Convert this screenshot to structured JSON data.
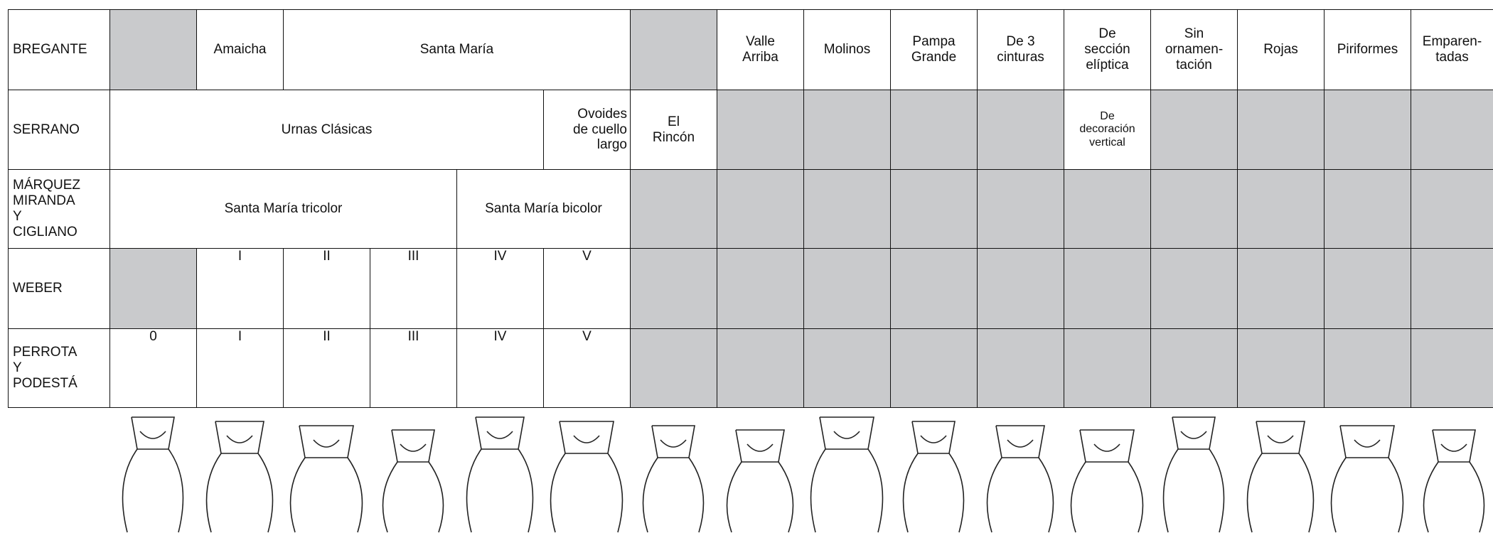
{
  "table": {
    "rows": [
      {
        "label": "BREGANTE",
        "cells": [
          "Amaicha",
          "Santa María",
          "Valle\nArriba",
          "Molinos",
          "Pampa\nGrande",
          "De 3\ncinturas",
          "De\nsección\nelíptica",
          "Sin\nornamen-\ntación",
          "Rojas",
          "Piriformes",
          "Emparen-\ntadas"
        ]
      },
      {
        "label": "SERRANO",
        "cells": [
          "Urnas Clásicas",
          "Ovoides\nde cuello\nlargo",
          "El\nRincón",
          "De\ndecoración\nvertical"
        ]
      },
      {
        "label": "MÁRQUEZ\nMIRANDA\nY\nCIGLIANO",
        "cells": [
          "Santa María tricolor",
          "Santa María bicolor"
        ]
      },
      {
        "label": "WEBER",
        "cells": [
          "I",
          "II",
          "III",
          "IV",
          "V"
        ]
      },
      {
        "label": "PERROTA\nY\nPODESTÁ",
        "cells": [
          "0",
          "I",
          "II",
          "III",
          "IV",
          "V"
        ]
      }
    ]
  }
}
